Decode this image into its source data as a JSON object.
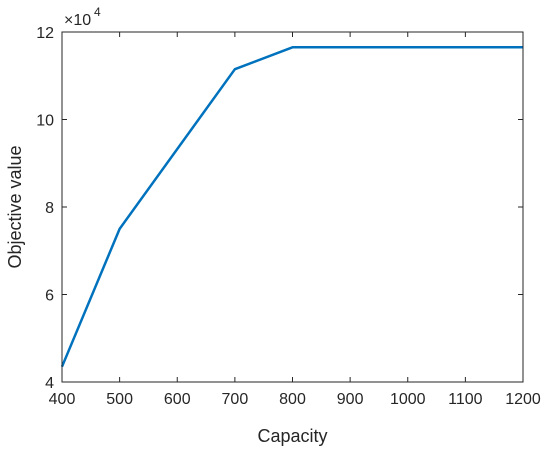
{
  "chart_data": {
    "type": "line",
    "xlabel": "Capacity",
    "ylabel": "Objective value",
    "exponent_base": "×10",
    "exponent_power": "4",
    "xlim": [
      400,
      1200
    ],
    "ylim": [
      4,
      12
    ],
    "xticks": [
      400,
      500,
      600,
      700,
      800,
      900,
      1000,
      1100,
      1200
    ],
    "yticks": [
      4,
      6,
      8,
      10,
      12
    ],
    "grid": false,
    "series": [
      {
        "color": "#0072BD",
        "x": [
          400,
          500,
          700,
          800,
          900,
          1000,
          1100,
          1200
        ],
        "y": [
          4.35,
          7.5,
          11.15,
          11.65,
          11.65,
          11.65,
          11.65,
          11.65
        ]
      }
    ]
  }
}
